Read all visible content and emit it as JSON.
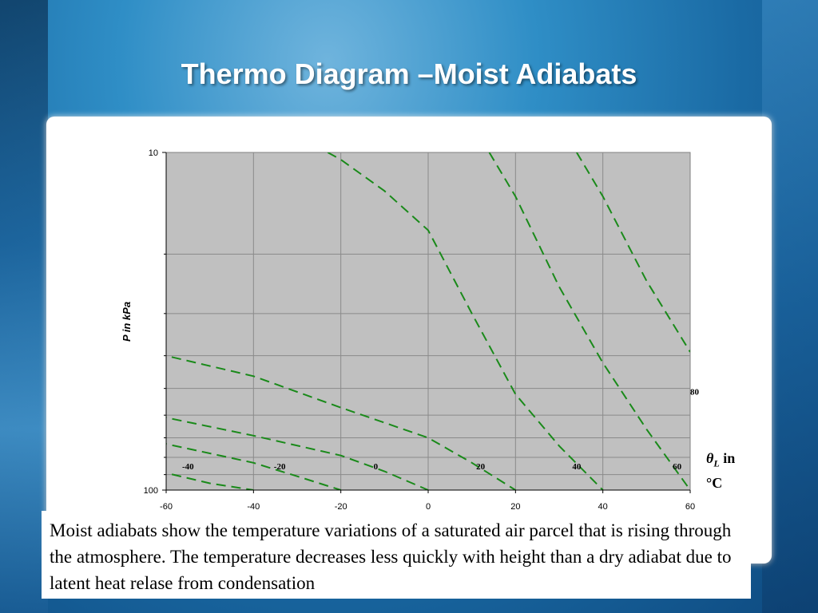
{
  "slide": {
    "title": "Thermo Diagram –Moist Adiabats",
    "caption": "Moist adiabats show the temperature variations of a saturated air parcel that is rising through the atmosphere. The temperature decreases less quickly with height than a dry adiabat due to latent heat relase from condensation",
    "theta_symbol": "θ",
    "theta_subscript": "L",
    "theta_unit_in": "in",
    "theta_unit_c": "°C"
  },
  "chart_data": {
    "type": "line",
    "title": "",
    "xlabel": "",
    "ylabel": "P in kPa",
    "xlim": [
      -60,
      60
    ],
    "ylim": [
      100,
      10
    ],
    "y_scale": "log",
    "x_ticks": [
      "-60",
      "-40",
      "-20",
      "0",
      "20",
      "40",
      "60"
    ],
    "y_ticks": [
      "10",
      "100"
    ],
    "grid": true,
    "plot_background": "#c0c0c0",
    "line_color": "#1a8a1a",
    "line_style": "dashed",
    "series": [
      {
        "name": "-40",
        "points": [
          [
            -62,
            87
          ],
          [
            -60,
            89
          ],
          [
            -50,
            95.5
          ],
          [
            -40,
            100
          ]
        ]
      },
      {
        "name": "-20",
        "points": [
          [
            -62,
            72
          ],
          [
            -60,
            73
          ],
          [
            -40,
            83
          ],
          [
            -30,
            91
          ],
          [
            -20,
            100
          ]
        ]
      },
      {
        "name": "0",
        "points": [
          [
            -62,
            60
          ],
          [
            -60,
            61
          ],
          [
            -40,
            69
          ],
          [
            -20,
            79
          ],
          [
            -10,
            88
          ],
          [
            0,
            100
          ]
        ]
      },
      {
        "name": "20",
        "points": [
          [
            -62,
            39
          ],
          [
            -60,
            40
          ],
          [
            -40,
            46
          ],
          [
            -20,
            57
          ],
          [
            0,
            70
          ],
          [
            10,
            83
          ],
          [
            20,
            100
          ]
        ]
      },
      {
        "name": "40",
        "points": [
          [
            -23,
            10
          ],
          [
            -20,
            10.5
          ],
          [
            -10,
            13
          ],
          [
            0,
            17
          ],
          [
            10,
            30
          ],
          [
            20,
            52
          ],
          [
            30,
            74
          ],
          [
            40,
            100
          ]
        ]
      },
      {
        "name": "60",
        "points": [
          [
            14,
            10
          ],
          [
            20,
            13.5
          ],
          [
            30,
            25
          ],
          [
            40,
            42
          ],
          [
            50,
            66
          ],
          [
            60,
            100
          ]
        ]
      },
      {
        "name": "80",
        "points": [
          [
            34,
            10
          ],
          [
            40,
            13.5
          ],
          [
            50,
            24
          ],
          [
            60,
            39
          ]
        ]
      }
    ],
    "line_labels": [
      {
        "text": "-40",
        "x": -55,
        "y": 85
      },
      {
        "text": "-20",
        "x": -34,
        "y": 85
      },
      {
        "text": "0",
        "x": -12,
        "y": 85
      },
      {
        "text": "20",
        "x": 12,
        "y": 85
      },
      {
        "text": "40",
        "x": 34,
        "y": 85
      },
      {
        "text": "60",
        "x": 57,
        "y": 85
      },
      {
        "text": "80",
        "x": 61,
        "y": 51
      }
    ]
  }
}
